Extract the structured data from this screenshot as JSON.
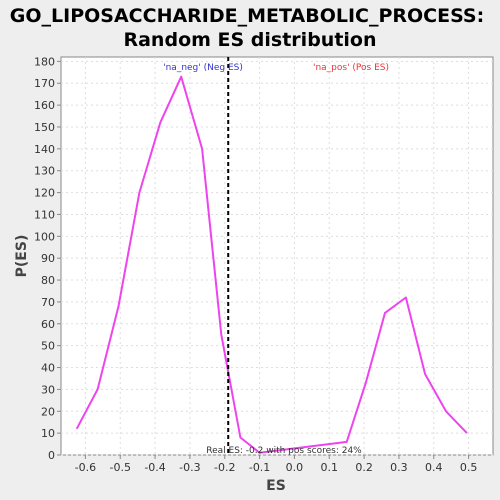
{
  "chart_data": {
    "type": "line",
    "title_lines": [
      "GO_LIPOSACCHARIDE_METABOLIC_PROCESS:",
      "Random ES distribution"
    ],
    "xlabel": "ES",
    "ylabel": "P(ES)",
    "xlim": [
      -0.67,
      0.57
    ],
    "ylim": [
      0,
      182
    ],
    "xticks": [
      -0.6,
      -0.5,
      -0.4,
      -0.3,
      -0.2,
      -0.1,
      0.0,
      0.1,
      0.2,
      0.3,
      0.4,
      0.5
    ],
    "xtick_labels": [
      "-0.6",
      "-0.5",
      "-0.4",
      "-0.3",
      "-0.2",
      "-0.1",
      "0.0",
      "0.1",
      "0.2",
      "0.3",
      "0.4",
      "0.5"
    ],
    "yticks": [
      0,
      10,
      20,
      30,
      40,
      50,
      60,
      70,
      80,
      90,
      100,
      110,
      120,
      130,
      140,
      150,
      160,
      170,
      180
    ],
    "ytick_labels": [
      "0",
      "10",
      "20",
      "30",
      "40",
      "50",
      "60",
      "70",
      "80",
      "90",
      "100",
      "110",
      "120",
      "130",
      "140",
      "150",
      "160",
      "170",
      "180"
    ],
    "grid": true,
    "series": [
      {
        "color": "#ee44ee",
        "x": [
          -0.625,
          -0.565,
          -0.505,
          -0.445,
          -0.385,
          -0.325,
          -0.265,
          -0.21,
          -0.155,
          -0.1,
          0.15,
          0.205,
          0.26,
          0.32,
          0.375,
          0.435,
          0.495
        ],
        "y": [
          12,
          30,
          68,
          120,
          152,
          173,
          140,
          55,
          8,
          1,
          6,
          33,
          65,
          72,
          37,
          20,
          10
        ]
      }
    ],
    "real_es": -0.19,
    "real_es_color": "#000000",
    "annotations": {
      "neg_label": "'na_neg' (Neg ES)",
      "neg_color": "#3333cc",
      "pos_label": "'na_pos' (Pos ES)",
      "pos_color": "#ee3333",
      "bottom_text": "Real ES: -0.2 with pos scores: 24%",
      "bottom_color": "#333333"
    }
  }
}
